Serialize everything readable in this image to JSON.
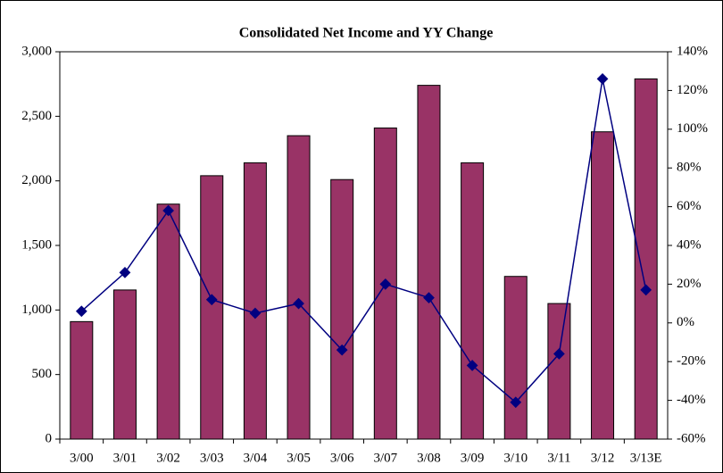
{
  "chart_data": {
    "type": "combo",
    "title": "Consolidated Net Income and YY Change",
    "categories": [
      "3/00",
      "3/01",
      "3/02",
      "3/03",
      "3/04",
      "3/05",
      "3/06",
      "3/07",
      "3/08",
      "3/09",
      "3/10",
      "3/11",
      "3/12",
      "3/13E"
    ],
    "series": [
      {
        "type": "bar",
        "color": "#993366",
        "values": [
          910,
          1155,
          1820,
          2040,
          2140,
          2350,
          2010,
          2410,
          2740,
          2140,
          1260,
          1050,
          2380,
          2790
        ]
      },
      {
        "type": "line",
        "color": "#000080",
        "axis": "y2",
        "values": [
          6,
          26,
          58,
          12,
          5,
          10,
          -14,
          20,
          13,
          -22,
          -41,
          -16,
          126,
          17
        ]
      }
    ],
    "ylim": [
      0,
      3000
    ],
    "yticks": [
      0,
      500,
      {
        "value": 1000,
        "label": "1,000"
      },
      {
        "value": 1500,
        "label": "1,500"
      },
      {
        "value": 2000,
        "label": "2,000"
      },
      {
        "value": 2500,
        "label": "2,500"
      },
      {
        "value": 3000,
        "label": "3,000"
      }
    ],
    "y2lim": [
      -60,
      140
    ],
    "y2ticks": [
      {
        "value": -60,
        "label": "-60%"
      },
      {
        "value": -40,
        "label": "-40%"
      },
      {
        "value": -20,
        "label": "-20%"
      },
      {
        "value": 0,
        "label": "0%"
      },
      {
        "value": 20,
        "label": "20%"
      },
      {
        "value": 40,
        "label": "40%"
      },
      {
        "value": 60,
        "label": "60%"
      },
      {
        "value": 80,
        "label": "80%"
      },
      {
        "value": 100,
        "label": "100%"
      },
      {
        "value": 120,
        "label": "120%"
      },
      {
        "value": 140,
        "label": "140%"
      }
    ],
    "grid": false
  }
}
